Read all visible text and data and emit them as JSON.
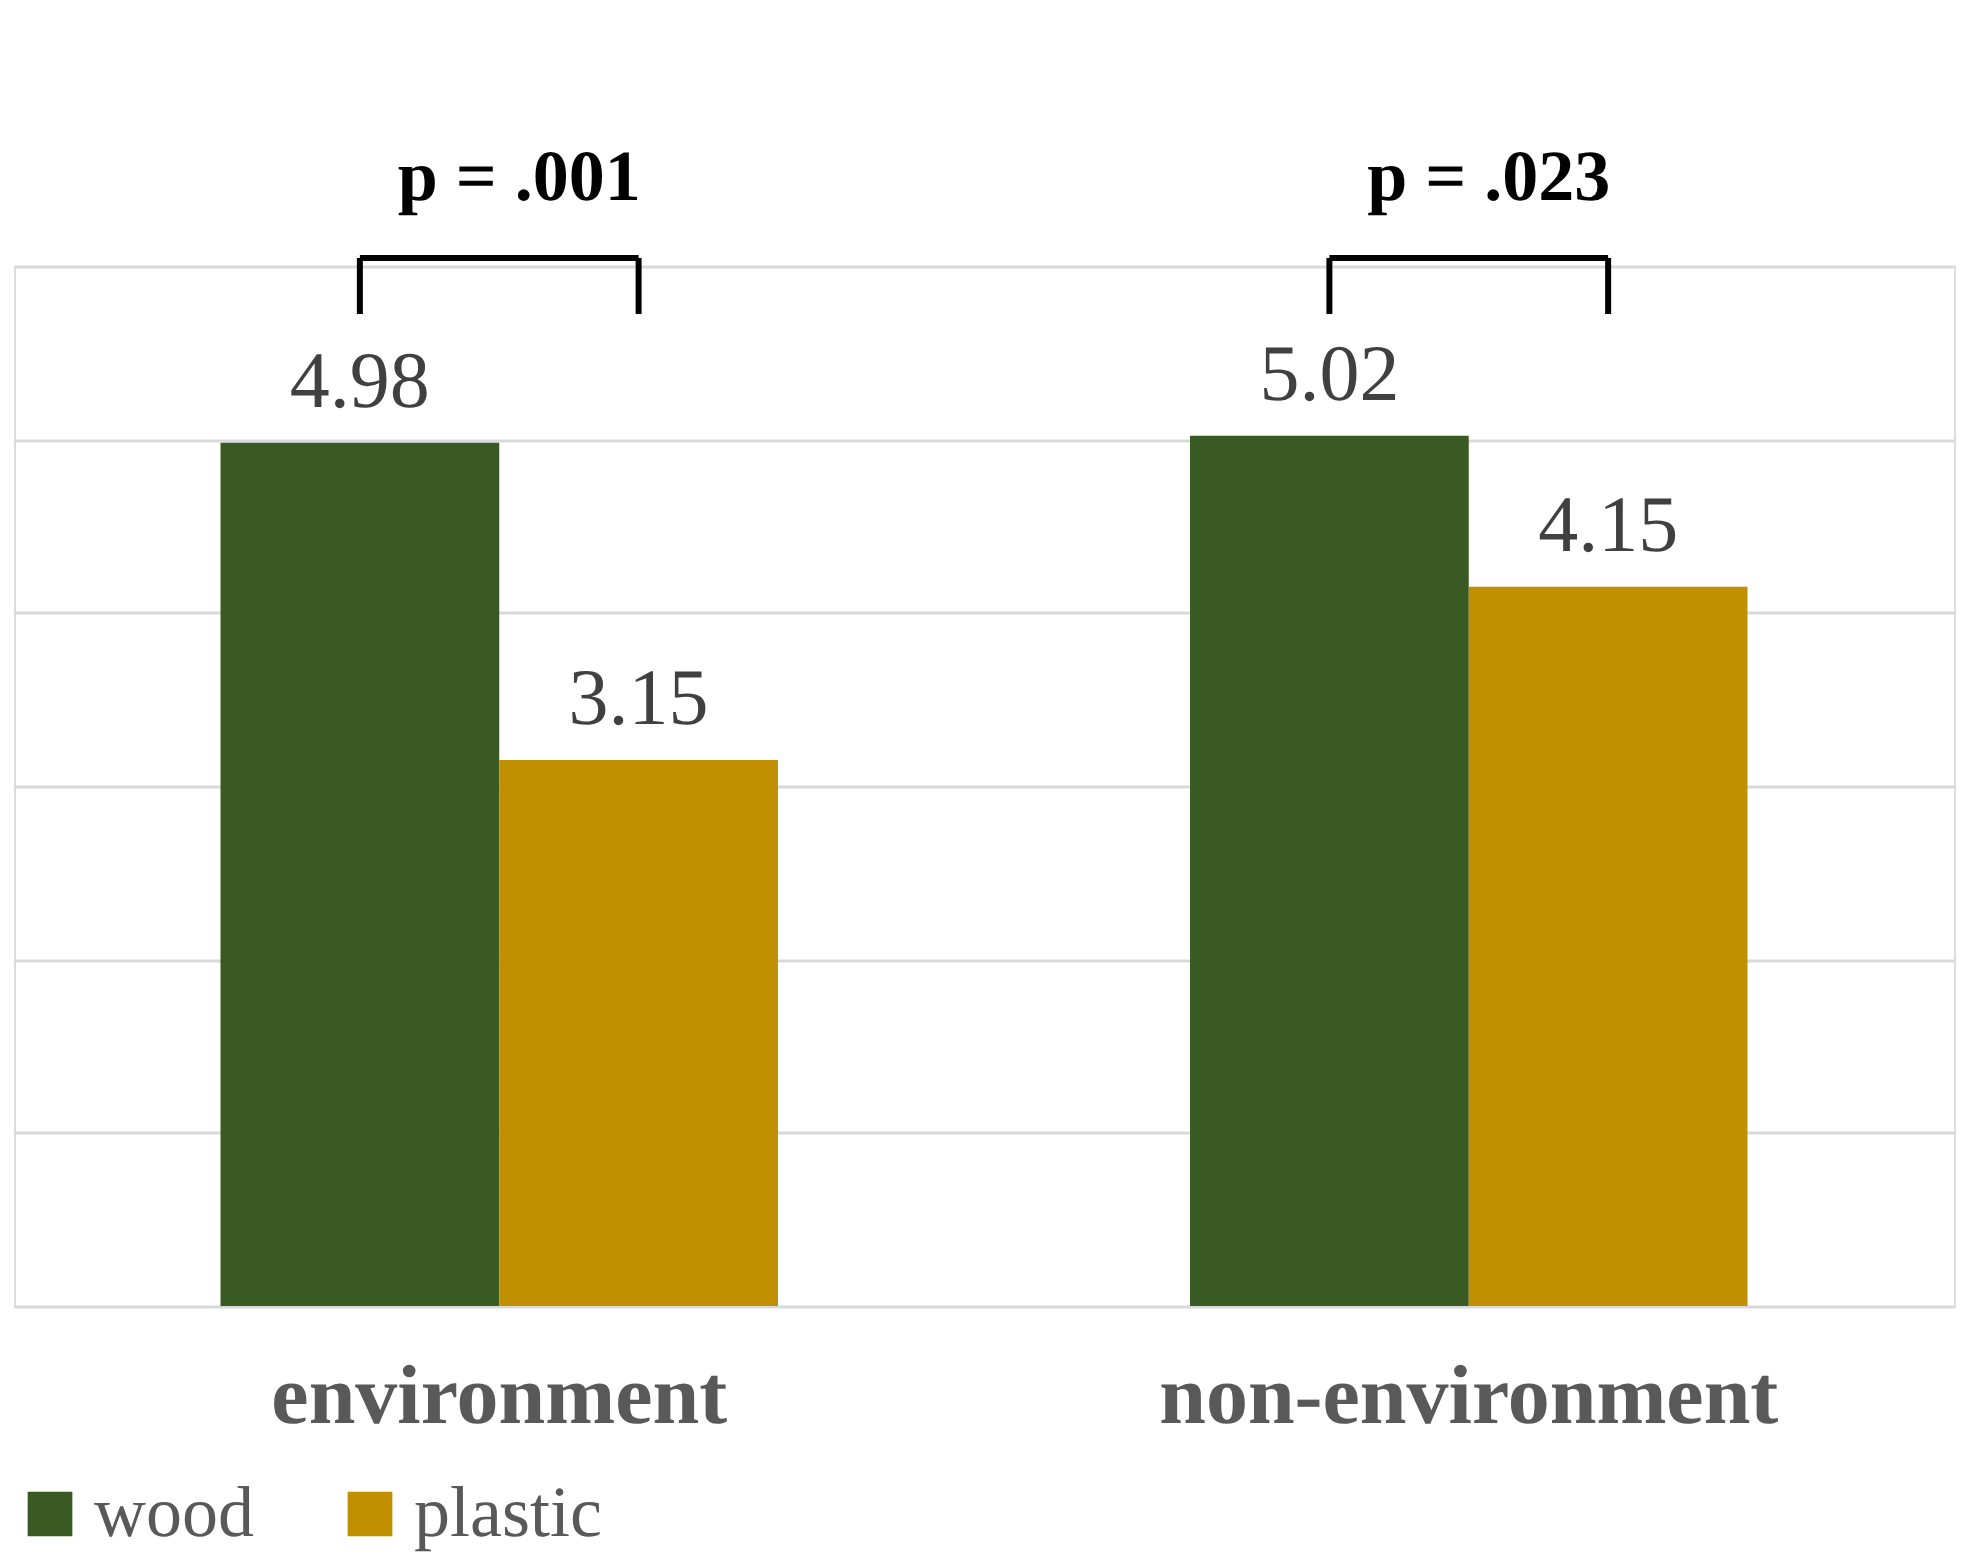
{
  "chart_data": {
    "type": "bar",
    "categories": [
      "environment",
      "non-environment"
    ],
    "series": [
      {
        "name": "wood",
        "color": "#3a5a24",
        "values": [
          4.98,
          5.02
        ]
      },
      {
        "name": "plastic",
        "color": "#c09000",
        "values": [
          3.15,
          4.15
        ]
      }
    ],
    "ylim": [
      0,
      6
    ],
    "yticks": [
      {
        "value": 0,
        "label": null
      },
      {
        "value": 1,
        "label": null
      },
      {
        "value": 2,
        "label": null
      },
      {
        "value": 3,
        "label": null
      },
      {
        "value": 4,
        "label": null
      },
      {
        "value": 5,
        "label": null
      },
      {
        "value": 6,
        "label": null
      }
    ],
    "tick_labels": "x",
    "grid": "y",
    "data_labels": true,
    "legend": "bottom",
    "annotations": [
      "p = .001",
      "p = .023"
    ]
  }
}
